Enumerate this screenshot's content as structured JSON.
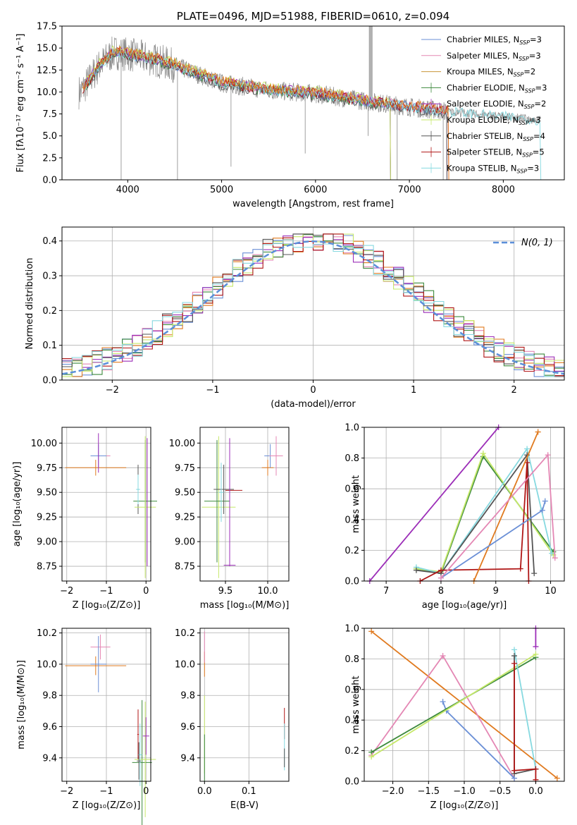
{
  "colors": {
    "chabrier_miles": "#6a8fd6",
    "salpeter_miles": "#e487b4",
    "kroupa_miles": "#c8963a",
    "chabrier_elodie": "#3d8a3d",
    "salpeter_elodie": "#9c2eb8",
    "kroupa_elodie": "#c6e86a",
    "chabrier_stelib": "#555555",
    "salpeter_stelib": "#b01616",
    "kroupa_stelib": "#86d9e0",
    "orange": "#e07a1f",
    "data": "#888888",
    "gauss": "#5b8fd9"
  },
  "chart_data": [
    {
      "id": "spectrum",
      "type": "line",
      "title": "PLATE=0496, MJD=51988, FIBERID=0610, z=0.094",
      "xlabel": "wavelength [Angstrom, rest frame]",
      "ylabel": "Flux [fλ10⁻¹⁷ erg cm⁻² s⁻¹ A⁻¹]",
      "xlim": [
        3300,
        8650
      ],
      "ylim": [
        0,
        17.5
      ],
      "xticks": [
        4000,
        5000,
        6000,
        7000,
        8000
      ],
      "yticks": [
        0.0,
        2.5,
        5.0,
        7.5,
        10.0,
        12.5,
        15.0,
        17.5
      ],
      "legend": [
        "Chabrier MILES, N_SSP=3",
        "Salpeter MILES, N_SSP=3",
        "Kroupa MILES, N_SSP=2",
        "Chabrier ELODIE, N_SSP=3",
        "Salpeter ELODIE, N_SSP=2",
        "Kroupa ELODIE, N_SSP=3",
        "Chabrier STELIB, N_SSP=4",
        "Salpeter STELIB, N_SSP=5",
        "Kroupa STELIB, N_SSP=3"
      ],
      "continuum": [
        [
          3500,
          10.0
        ],
        [
          3700,
          13.0
        ],
        [
          3850,
          14.5
        ],
        [
          4000,
          14.3
        ],
        [
          4300,
          13.6
        ],
        [
          4500,
          13.0
        ],
        [
          4800,
          11.8
        ],
        [
          5000,
          11.0
        ],
        [
          5500,
          10.2
        ],
        [
          6000,
          9.8
        ],
        [
          6500,
          9.0
        ],
        [
          7000,
          8.3
        ],
        [
          7400,
          7.8
        ],
        [
          7700,
          7.5
        ],
        [
          8000,
          7.2
        ],
        [
          8400,
          6.8
        ]
      ],
      "grid": false
    },
    {
      "id": "residuals",
      "type": "histogram",
      "xlabel": "(data-model)/error",
      "ylabel": "Normed distribution",
      "xlim": [
        -2.5,
        2.5
      ],
      "ylim": [
        0,
        0.44
      ],
      "xticks": [
        -2,
        -1,
        0,
        1,
        2
      ],
      "yticks": [
        0.0,
        0.1,
        0.2,
        0.3,
        0.4
      ],
      "legend": [
        "𝒩(0, 1)"
      ],
      "gaussian": {
        "mean": 0,
        "sigma": 1
      },
      "grid": true
    },
    {
      "id": "age_vs_Z",
      "type": "errorbar",
      "xlabel": "Z [log₁₀(Z/Z⊙)]",
      "ylabel": "age  [log₁₀(age/yr)]",
      "xlim": [
        -2.12,
        0.12
      ],
      "ylim": [
        8.6,
        10.16
      ],
      "xticks": [
        -2,
        -1,
        0
      ],
      "yticks": [
        8.75,
        9.0,
        9.25,
        9.5,
        9.75,
        10.0
      ],
      "grid": true
    },
    {
      "id": "age_vs_mass",
      "type": "errorbar",
      "xlabel": "mass [log₁₀(M/M⊙)]",
      "ylabel": "",
      "xlim": [
        9.2,
        10.25
      ],
      "ylim": [
        8.6,
        10.16
      ],
      "xticks": [
        9.5,
        10.0
      ],
      "yticks": [
        8.75,
        9.0,
        9.25,
        9.5,
        9.75,
        10.0
      ],
      "grid": true
    },
    {
      "id": "weight_vs_age",
      "type": "line",
      "xlabel": "age  [log₁₀(age/yr)]",
      "ylabel": "mass weight",
      "xlim": [
        6.6,
        10.25
      ],
      "ylim": [
        0,
        1.0
      ],
      "xticks": [
        7,
        8,
        9,
        10
      ],
      "yticks": [
        0.0,
        0.2,
        0.4,
        0.6,
        0.8,
        1.0
      ],
      "grid": true
    },
    {
      "id": "mass_vs_Z",
      "type": "errorbar",
      "xlabel": "Z [log₁₀(Z/Z⊙)]",
      "ylabel": "mass [log₁₀(M/M⊙)]",
      "xlim": [
        -2.12,
        0.12
      ],
      "ylim": [
        9.25,
        10.23
      ],
      "xticks": [
        -2,
        -1,
        0
      ],
      "yticks": [
        9.4,
        9.6,
        9.8,
        10.0,
        10.2
      ],
      "grid": true
    },
    {
      "id": "mass_vs_ebv",
      "type": "errorbar",
      "xlabel": "E(B-V)",
      "ylabel": "",
      "xlim": [
        -0.01,
        0.19
      ],
      "ylim": [
        9.25,
        10.23
      ],
      "xticks": [
        0.0,
        0.1
      ],
      "yticks": [
        9.4,
        9.6,
        9.8,
        10.0,
        10.2
      ],
      "grid": true
    },
    {
      "id": "weight_vs_Z",
      "type": "line",
      "xlabel": "Z [log₁₀(Z/Z⊙)]",
      "ylabel": "mass weight",
      "xlim": [
        -2.4,
        0.4
      ],
      "ylim": [
        0,
        1.0
      ],
      "xticks": [
        -2.0,
        -1.5,
        -1.0,
        -0.5,
        0.0
      ],
      "yticks": [
        0.0,
        0.2,
        0.4,
        0.6,
        0.8,
        1.0
      ],
      "grid": true
    }
  ],
  "weights_age": [
    {
      "color": "salpeter_elodie",
      "pts": [
        [
          6.7,
          0.0
        ],
        [
          9.05,
          1.0
        ]
      ]
    },
    {
      "color": "chabrier_elodie",
      "pts": [
        [
          7.55,
          0.08
        ],
        [
          8.0,
          0.05
        ],
        [
          8.77,
          0.81
        ],
        [
          10.05,
          0.19
        ]
      ]
    },
    {
      "color": "kroupa_elodie",
      "pts": [
        [
          7.55,
          0.08
        ],
        [
          8.0,
          0.06
        ],
        [
          8.77,
          0.83
        ],
        [
          10.05,
          0.17
        ]
      ]
    },
    {
      "color": "kroupa_stelib",
      "pts": [
        [
          7.55,
          0.09
        ],
        [
          8.0,
          0.05
        ],
        [
          9.57,
          0.86
        ],
        [
          10.02,
          0.18
        ]
      ]
    },
    {
      "color": "chabrier_stelib",
      "pts": [
        [
          7.55,
          0.07
        ],
        [
          8.0,
          0.05
        ],
        [
          9.57,
          0.82
        ],
        [
          9.7,
          0.05
        ]
      ]
    },
    {
      "color": "salpeter_stelib",
      "pts": [
        [
          7.62,
          0.0
        ],
        [
          8.0,
          0.07
        ],
        [
          9.45,
          0.08
        ],
        [
          9.57,
          0.77
        ],
        [
          9.6,
          0.0
        ]
      ]
    },
    {
      "color": "orange",
      "pts": [
        [
          8.6,
          0.0
        ],
        [
          9.77,
          0.97
        ]
      ]
    },
    {
      "color": "chabrier_miles",
      "pts": [
        [
          8.0,
          0.02
        ],
        [
          9.85,
          0.46
        ],
        [
          9.9,
          0.52
        ]
      ]
    },
    {
      "color": "salpeter_miles",
      "pts": [
        [
          8.0,
          0.02
        ],
        [
          9.95,
          0.82
        ],
        [
          10.08,
          0.15
        ]
      ]
    }
  ],
  "weights_Z": [
    {
      "color": "orange",
      "pts": [
        [
          -2.3,
          0.98
        ],
        [
          0.3,
          0.02
        ]
      ]
    },
    {
      "color": "salpeter_miles",
      "pts": [
        [
          -2.3,
          0.17
        ],
        [
          -1.3,
          0.82
        ],
        [
          -0.3,
          0.02
        ]
      ]
    },
    {
      "color": "chabrier_miles",
      "pts": [
        [
          -1.3,
          0.52
        ],
        [
          -1.25,
          0.46
        ],
        [
          -0.3,
          0.02
        ]
      ]
    },
    {
      "color": "chabrier_elodie",
      "pts": [
        [
          -2.3,
          0.19
        ],
        [
          0.0,
          0.81
        ]
      ]
    },
    {
      "color": "kroupa_elodie",
      "pts": [
        [
          -2.3,
          0.16
        ],
        [
          0.0,
          0.83
        ]
      ]
    },
    {
      "color": "kroupa_stelib",
      "pts": [
        [
          -0.3,
          0.86
        ],
        [
          0.0,
          0.08
        ]
      ]
    },
    {
      "color": "chabrier_stelib",
      "pts": [
        [
          -0.3,
          0.82
        ],
        [
          -0.3,
          0.05
        ],
        [
          0.0,
          0.08
        ]
      ]
    },
    {
      "color": "salpeter_stelib",
      "pts": [
        [
          -0.3,
          0.77
        ],
        [
          -0.3,
          0.07
        ],
        [
          0.0,
          0.08
        ],
        [
          0.0,
          0.01
        ]
      ]
    },
    {
      "color": "salpeter_elodie",
      "pts": [
        [
          0.0,
          1.0
        ],
        [
          0.0,
          0.88
        ]
      ]
    }
  ],
  "age_Z_points": [
    {
      "color": "orange",
      "x": -1.27,
      "y": 9.75,
      "xe": 0.77,
      "ye": 0.08
    },
    {
      "color": "salpeter_miles",
      "x": -1.15,
      "y": 9.87,
      "xe": 0.25,
      "ye": 0.0
    },
    {
      "color": "chabrier_miles",
      "x": -1.2,
      "y": 9.87,
      "xe": 0.2,
      "ye": 0.12
    },
    {
      "color": "salpeter_elodie",
      "x": -1.2,
      "y": 9.9,
      "xe": 0.0,
      "ye": 0.2
    },
    {
      "color": "chabrier_stelib",
      "x": -0.2,
      "y": 9.53,
      "xe": 0.02,
      "ye": 0.25
    },
    {
      "color": "chabrier_elodie",
      "x": -0.02,
      "y": 9.41,
      "xe": 0.3,
      "ye": 0.62
    },
    {
      "color": "kroupa_elodie",
      "x": -0.02,
      "y": 9.35,
      "xe": 0.27,
      "ye": 0.72
    },
    {
      "color": "salpeter_elodie",
      "x": 0.03,
      "y": 9.4,
      "xe": 0.0,
      "ye": 0.65
    },
    {
      "color": "kroupa_stelib",
      "x": -0.2,
      "y": 9.53,
      "xe": 0.05,
      "ye": 0.15
    }
  ],
  "age_mass_points": [
    {
      "color": "kroupa_elodie",
      "x": 9.42,
      "y": 9.35,
      "xe": 0.2,
      "ye": 0.72
    },
    {
      "color": "chabrier_elodie",
      "x": 9.4,
      "y": 9.41,
      "xe": 0.15,
      "ye": 0.62
    },
    {
      "color": "chabrier_stelib",
      "x": 9.48,
      "y": 9.53,
      "xe": 0.12,
      "ye": 0.25
    },
    {
      "color": "salpeter_stelib",
      "x": 9.6,
      "y": 9.52,
      "xe": 0.1,
      "ye": 0.0
    },
    {
      "color": "salpeter_elodie",
      "x": 9.55,
      "y": 9.4,
      "xe": 0.0,
      "ye": 0.65
    },
    {
      "color": "salpeter_elodie",
      "x": 9.55,
      "y": 8.76,
      "xe": 0.07,
      "ye": 0.0
    },
    {
      "color": "orange",
      "x": 10.0,
      "y": 9.75,
      "xe": 0.07,
      "ye": 0.08
    },
    {
      "color": "chabrier_miles",
      "x": 10.03,
      "y": 9.87,
      "xe": 0.07,
      "ye": 0.12
    },
    {
      "color": "salpeter_miles",
      "x": 10.1,
      "y": 9.87,
      "xe": 0.08,
      "ye": 0.2
    },
    {
      "color": "kroupa_stelib",
      "x": 9.45,
      "y": 9.5,
      "xe": 0.03,
      "ye": 0.3
    }
  ],
  "mass_Z_points": [
    {
      "color": "orange",
      "x": -1.27,
      "y": 9.99,
      "xe": 0.77,
      "ye": 0.06
    },
    {
      "color": "salpeter_miles",
      "x": -1.15,
      "y": 10.11,
      "xe": 0.25,
      "ye": 0.08
    },
    {
      "color": "chabrier_miles",
      "x": -1.2,
      "y": 10.0,
      "xe": 0.2,
      "ye": 0.18
    },
    {
      "color": "salpeter_stelib",
      "x": -0.2,
      "y": 9.55,
      "xe": 0.02,
      "ye": 0.16
    },
    {
      "color": "chabrier_elodie",
      "x": -0.1,
      "y": 9.37,
      "xe": 0.25,
      "ye": 0.4
    },
    {
      "color": "kroupa_elodie",
      "x": -0.02,
      "y": 9.39,
      "xe": 0.27,
      "ye": 0.37
    },
    {
      "color": "salpeter_elodie",
      "x": 0.0,
      "y": 9.54,
      "xe": 0.08,
      "ye": 0.12
    },
    {
      "color": "kroupa_stelib",
      "x": -0.15,
      "y": 9.42,
      "xe": 0.05,
      "ye": 0.2
    },
    {
      "color": "chabrier_stelib",
      "x": -0.18,
      "y": 9.38,
      "xe": 0.05,
      "ye": 0.12
    }
  ],
  "mass_ebv_points": [
    {
      "color": "orange",
      "x": 0.0,
      "y": 10.0,
      "xe": 0.0,
      "ye": 0.08
    },
    {
      "color": "salpeter_miles",
      "x": 0.0,
      "y": 10.11,
      "xe": 0.0,
      "ye": 0.1
    },
    {
      "color": "kroupa_elodie",
      "x": 0.0,
      "y": 9.55,
      "xe": 0.0,
      "ye": 0.25
    },
    {
      "color": "chabrier_elodie",
      "x": 0.0,
      "y": 9.4,
      "xe": 0.0,
      "ye": 0.15
    },
    {
      "color": "salpeter_stelib",
      "x": 0.18,
      "y": 9.62,
      "xe": 0.0,
      "ye": 0.1
    },
    {
      "color": "kroupa_stelib",
      "x": 0.18,
      "y": 9.47,
      "xe": 0.0,
      "ye": 0.15
    },
    {
      "color": "chabrier_stelib",
      "x": 0.18,
      "y": 9.4,
      "xe": 0.0,
      "ye": 0.06
    }
  ]
}
